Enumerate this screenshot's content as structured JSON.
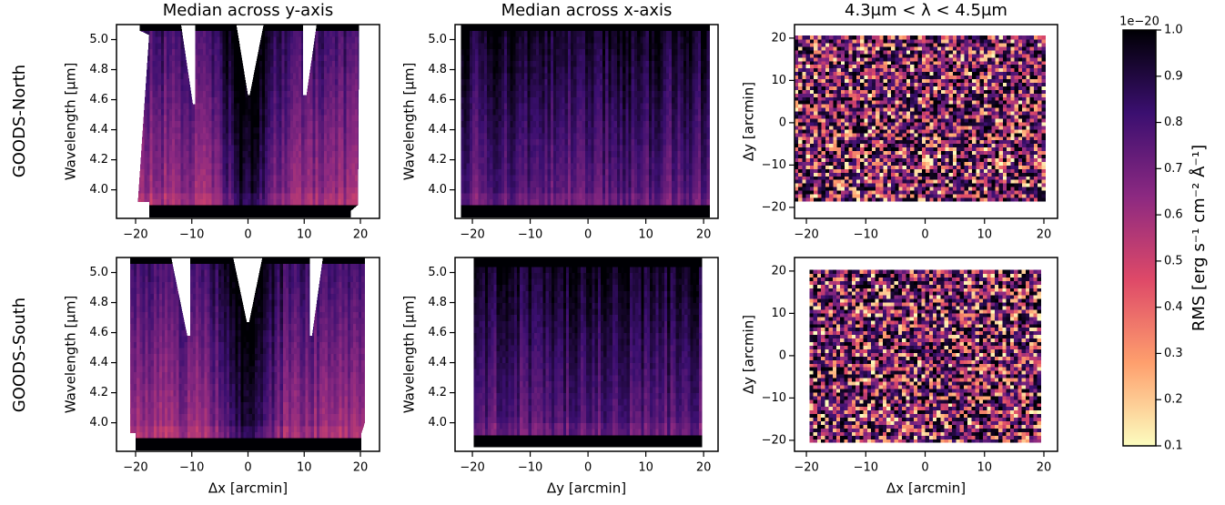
{
  "figure": {
    "row_labels": [
      "GOODS-North",
      "GOODS-South"
    ]
  },
  "chart_data": [
    {
      "type": "heatmap",
      "title": "Median across y-axis",
      "ylabel": "Wavelength [μm]",
      "xlim": [
        -23.4,
        23.4
      ],
      "ylim": [
        3.81,
        5.1
      ],
      "xticks": [
        {
          "value": -20,
          "label": "−20"
        },
        {
          "value": -10,
          "label": "−10"
        },
        0,
        10,
        20
      ],
      "yticks": [
        {
          "value": 4.0,
          "label": "4.0"
        },
        4.2,
        4.4,
        4.6,
        4.8,
        {
          "value": 5.0,
          "label": "5.0"
        }
      ]
    },
    {
      "type": "heatmap",
      "title": "Median across x-axis",
      "ylabel": "Wavelength [μm]",
      "xlim": [
        -23.0,
        22.5
      ],
      "ylim": [
        3.81,
        5.1
      ],
      "xticks": [
        {
          "value": -20,
          "label": "−20"
        },
        {
          "value": -10,
          "label": "−10"
        },
        0,
        10,
        20
      ],
      "yticks": [
        {
          "value": 4.0,
          "label": "4.0"
        },
        4.2,
        4.4,
        4.6,
        4.8,
        {
          "value": 5.0,
          "label": "5.0"
        }
      ]
    },
    {
      "type": "heatmap",
      "title": "4.3μm < λ < 4.5μm",
      "ylabel": "Δy [arcmin]",
      "xlim": [
        -22.0,
        22.3
      ],
      "ylim": [
        -22.6,
        23.2
      ],
      "xticks": [
        {
          "value": -20,
          "label": "−20"
        },
        {
          "value": -10,
          "label": "−10"
        },
        0,
        10,
        20
      ],
      "yticks": [
        {
          "value": -20,
          "label": "−20"
        },
        {
          "value": -10,
          "label": "−10"
        },
        0,
        10,
        20
      ]
    },
    {
      "type": "heatmap",
      "xlabel": "Δx [arcmin]",
      "ylabel": "Wavelength [μm]",
      "xlim": [
        -23.4,
        23.4
      ],
      "ylim": [
        3.81,
        5.1
      ],
      "xticks": [
        {
          "value": -20,
          "label": "−20"
        },
        {
          "value": -10,
          "label": "−10"
        },
        0,
        10,
        20
      ],
      "yticks": [
        {
          "value": 4.0,
          "label": "4.0"
        },
        4.2,
        4.4,
        4.6,
        4.8,
        {
          "value": 5.0,
          "label": "5.0"
        }
      ]
    },
    {
      "type": "heatmap",
      "xlabel": "Δy [arcmin]",
      "ylabel": "Wavelength [μm]",
      "xlim": [
        -23.0,
        22.5
      ],
      "ylim": [
        3.81,
        5.1
      ],
      "xticks": [
        {
          "value": -20,
          "label": "−20"
        },
        {
          "value": -10,
          "label": "−10"
        },
        0,
        10,
        20
      ],
      "yticks": [
        {
          "value": 4.0,
          "label": "4.0"
        },
        4.2,
        4.4,
        4.6,
        4.8,
        {
          "value": 5.0,
          "label": "5.0"
        }
      ]
    },
    {
      "type": "heatmap",
      "xlabel": "Δx [arcmin]",
      "ylabel": "Δy [arcmin]",
      "xlim": [
        -22.0,
        22.3
      ],
      "ylim": [
        -22.6,
        23.2
      ],
      "xticks": [
        {
          "value": -20,
          "label": "−20"
        },
        {
          "value": -10,
          "label": "−10"
        },
        0,
        10,
        20
      ],
      "yticks": [
        {
          "value": -20,
          "label": "−20"
        },
        {
          "value": -10,
          "label": "−10"
        },
        0,
        10,
        20
      ]
    },
    {
      "type": "colorbar",
      "label": "RMS [erg s⁻¹ cm⁻² Å⁻¹]",
      "offset_label": "1e−20",
      "ylim": [
        0.1,
        1.0
      ],
      "yticks": [
        0.1,
        0.2,
        0.3,
        0.4,
        0.5,
        0.6,
        0.7,
        0.8,
        0.9,
        {
          "value": 1.0,
          "label": "1.0"
        }
      ],
      "colors": [
        "#000004",
        "#3b0f70",
        "#8c2981",
        "#de4968",
        "#fe9f6d",
        "#fcfdbf"
      ]
    }
  ]
}
